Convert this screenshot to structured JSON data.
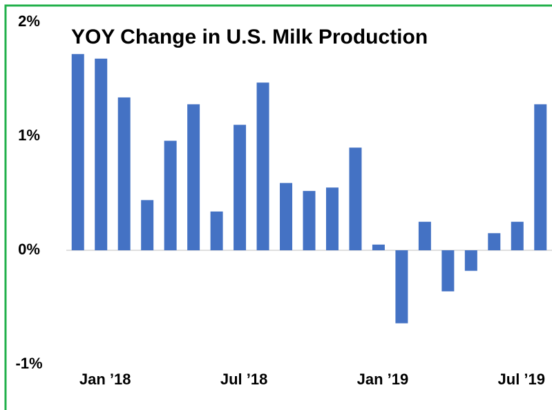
{
  "chart_data": {
    "type": "bar",
    "title": "YOY Change in U.S. Milk Production",
    "categories": [
      null,
      "Jan ’18",
      null,
      null,
      null,
      null,
      null,
      "Jul ’18",
      null,
      null,
      null,
      null,
      null,
      "Jan ’19",
      null,
      null,
      null,
      null,
      null,
      "Jul ’19",
      null
    ],
    "values": [
      1.72,
      1.68,
      1.34,
      0.44,
      0.96,
      1.28,
      0.34,
      1.1,
      1.47,
      0.59,
      0.52,
      0.55,
      0.9,
      0.05,
      -0.64,
      0.25,
      -0.36,
      -0.18,
      0.15,
      0.25,
      1.28
    ],
    "color": "#4472c4",
    "ylim": [
      -1,
      2
    ],
    "yticks": [
      {
        "value": -1,
        "label": "-1%"
      },
      {
        "value": 0,
        "label": "0%"
      },
      {
        "value": 1,
        "label": "1%"
      },
      {
        "value": 2,
        "label": "2%"
      }
    ],
    "grid": false
  }
}
